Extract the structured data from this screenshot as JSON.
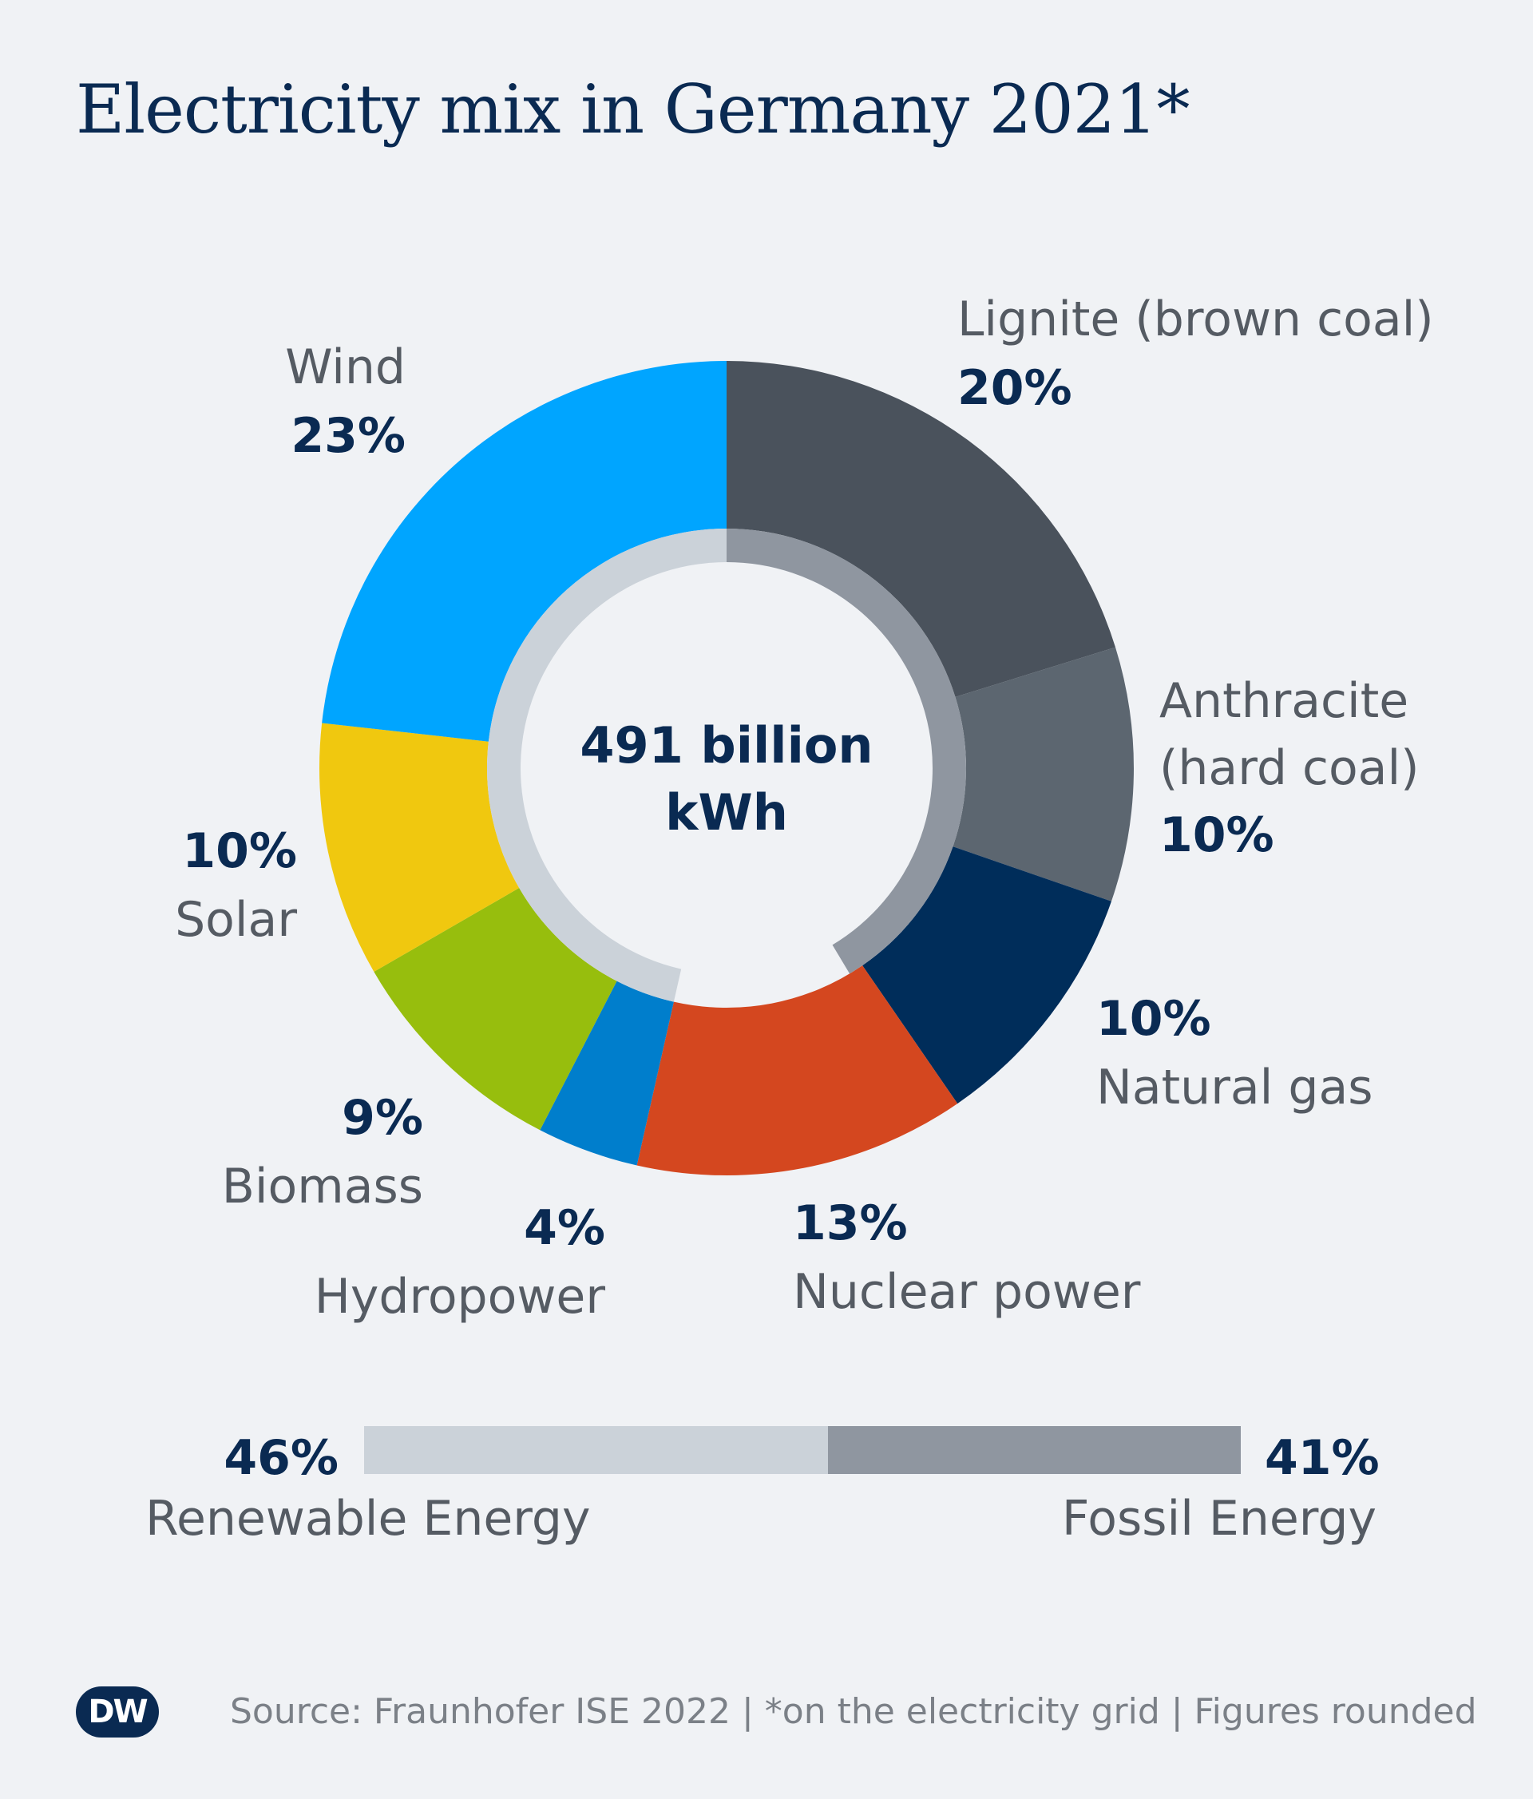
{
  "title": "Electricity mix in Germany 2021*",
  "center_label": [
    "491 billion",
    "kWh"
  ],
  "chart_data": {
    "type": "pie",
    "subtype": "donut",
    "title": "Electricity mix in Germany 2021*",
    "unit": "%",
    "total": "491 billion kWh",
    "slices": [
      {
        "name": "Lignite (brown coal)",
        "value": 20,
        "pct_label": "20%",
        "color": "#4a525c",
        "group": "fossil"
      },
      {
        "name": "Anthracite (hard coal)",
        "value": 10,
        "pct_label": "10%",
        "color": "#5c6670",
        "group": "fossil"
      },
      {
        "name": "Natural gas",
        "value": 10,
        "pct_label": "10%",
        "color": "#002d5a",
        "group": "fossil"
      },
      {
        "name": "Nuclear power",
        "value": 13,
        "pct_label": "13%",
        "color": "#d4471f",
        "group": "other"
      },
      {
        "name": "Hydropower",
        "value": 4,
        "pct_label": "4%",
        "color": "#007ecc",
        "group": "renewable"
      },
      {
        "name": "Biomass",
        "value": 9,
        "pct_label": "9%",
        "color": "#97be0d",
        "group": "renewable"
      },
      {
        "name": "Solar",
        "value": 10,
        "pct_label": "10%",
        "color": "#f0c80f",
        "group": "renewable"
      },
      {
        "name": "Wind",
        "value": 23,
        "pct_label": "23%",
        "color": "#00a5ff",
        "group": "renewable"
      }
    ],
    "inner_ring": [
      {
        "name": "Renewable Energy",
        "value": 46,
        "color": "#cbd2d9"
      },
      {
        "name": "Fossil Energy",
        "value": 41,
        "color": "#8f96a0"
      }
    ]
  },
  "labels": {
    "lignite": {
      "name": "Lignite (brown coal)",
      "pct": "20%"
    },
    "anthracite": {
      "name1": "Anthracite",
      "name2": "(hard coal)",
      "pct": "10%"
    },
    "gas": {
      "pct": "10%",
      "name": "Natural gas"
    },
    "nuclear": {
      "pct": "13%",
      "name": "Nuclear power"
    },
    "hydro": {
      "pct": "4%",
      "name": "Hydropower"
    },
    "biomass": {
      "pct": "9%",
      "name": "Biomass"
    },
    "solar": {
      "pct": "10%",
      "name": "Solar"
    },
    "wind": {
      "name": "Wind",
      "pct": "23%"
    }
  },
  "summary_bar": {
    "renewable": {
      "pct": "46%",
      "value": 46,
      "label": "Renewable Energy",
      "color": "#cbd2d9"
    },
    "fossil": {
      "pct": "41%",
      "value": 41,
      "label": "Fossil Energy",
      "color": "#8f96a0"
    }
  },
  "footer": "Source: Fraunhofer ISE 2022 | *on the electricity grid | Figures rounded",
  "logo_text": "DW"
}
